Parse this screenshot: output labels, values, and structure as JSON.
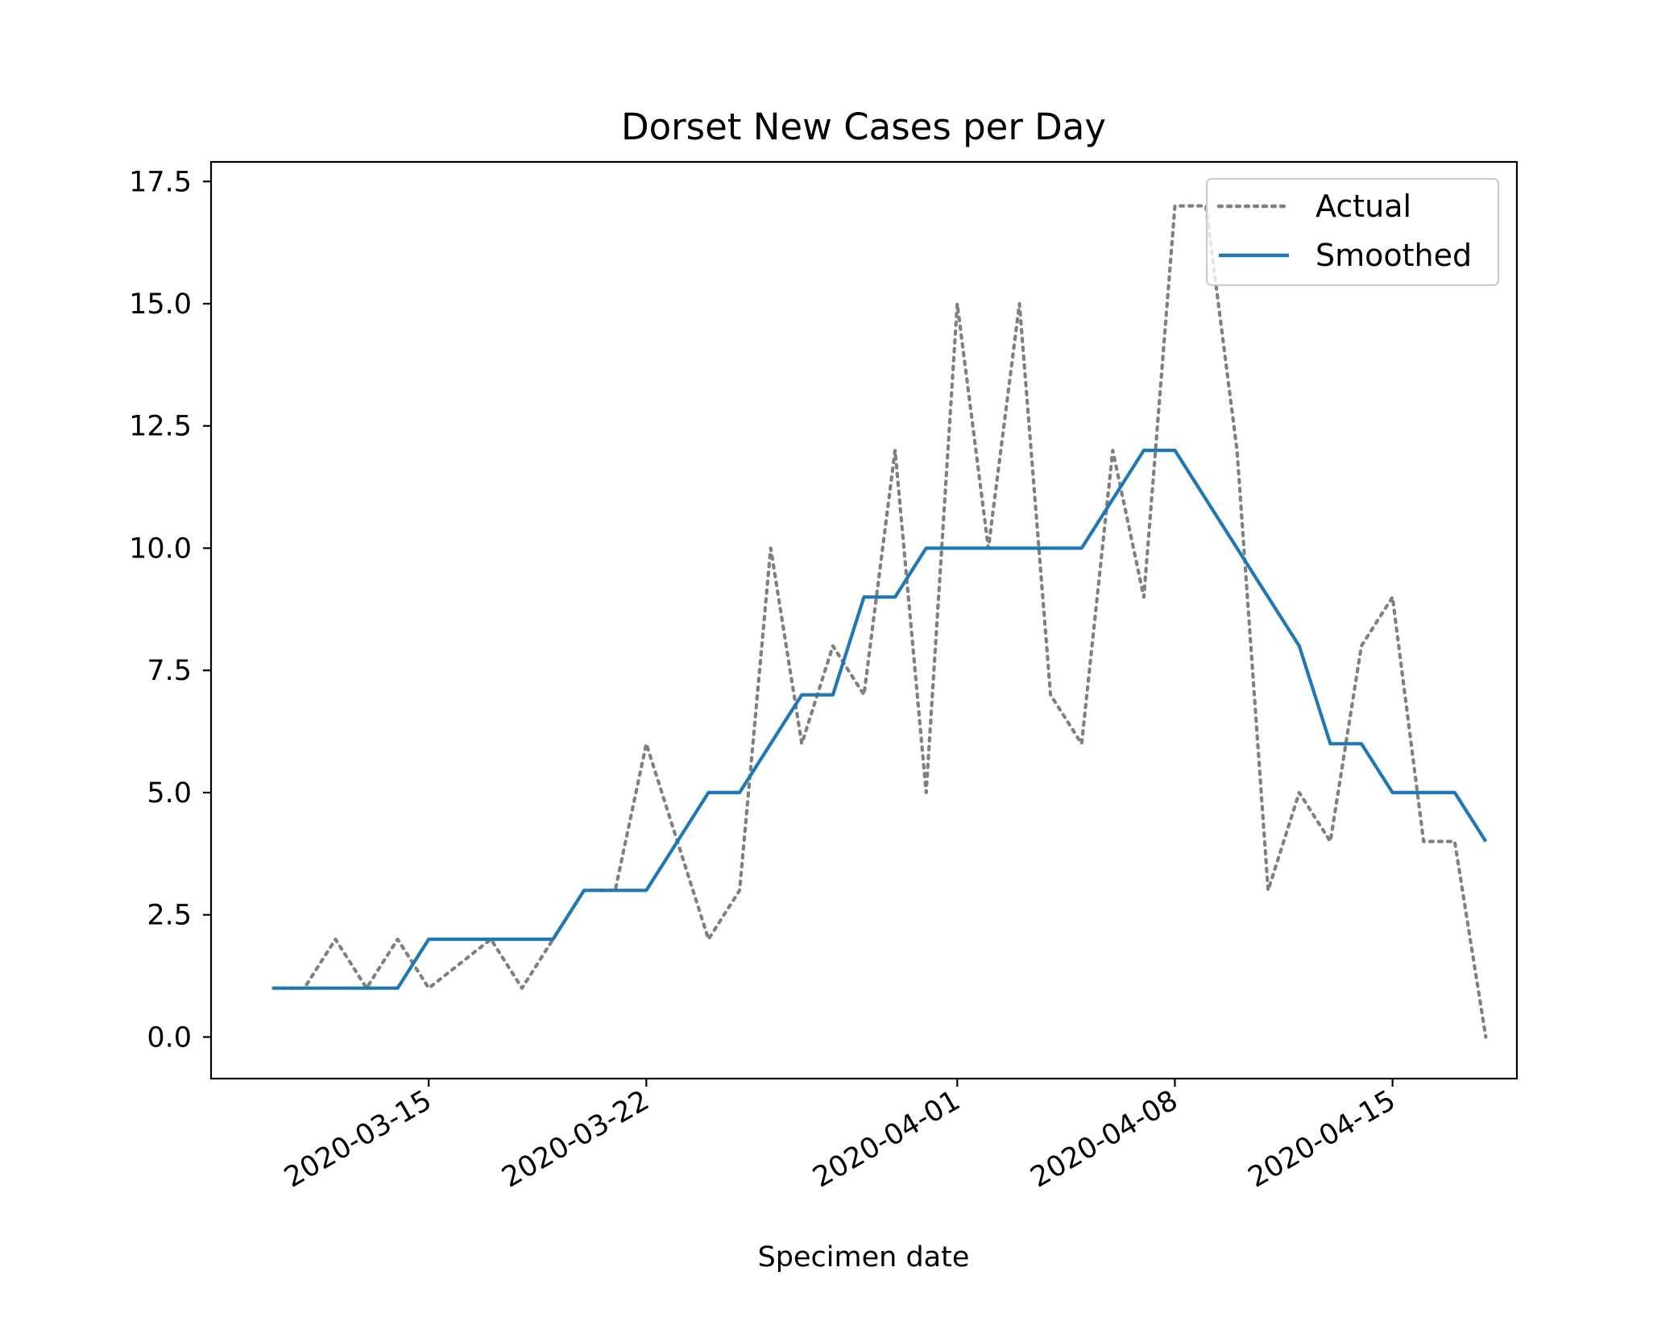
{
  "chart_data": {
    "type": "line",
    "title": "Dorset New Cases per Day",
    "xlabel": "Specimen date",
    "ylabel": "",
    "x_ticks": [
      "2020-03-15",
      "2020-03-22",
      "2020-04-01",
      "2020-04-08",
      "2020-04-15"
    ],
    "y_ticks": [
      "0.0",
      "2.5",
      "5.0",
      "7.5",
      "10.0",
      "12.5",
      "15.0",
      "17.5"
    ],
    "ylim": [
      -0.85,
      17.9
    ],
    "xlim": [
      "2020-03-08",
      "2020-04-19"
    ],
    "grid": false,
    "legend_position": "top-right",
    "dates": [
      "2020-03-10",
      "2020-03-11",
      "2020-03-12",
      "2020-03-13",
      "2020-03-14",
      "2020-03-15",
      "2020-03-16",
      "2020-03-17",
      "2020-03-18",
      "2020-03-19",
      "2020-03-20",
      "2020-03-21",
      "2020-03-22",
      "2020-03-23",
      "2020-03-24",
      "2020-03-25",
      "2020-03-26",
      "2020-03-27",
      "2020-03-28",
      "2020-03-29",
      "2020-03-30",
      "2020-03-31",
      "2020-04-01",
      "2020-04-02",
      "2020-04-03",
      "2020-04-04",
      "2020-04-05",
      "2020-04-06",
      "2020-04-07",
      "2020-04-08",
      "2020-04-09",
      "2020-04-10",
      "2020-04-11",
      "2020-04-12",
      "2020-04-13",
      "2020-04-14",
      "2020-04-15",
      "2020-04-16",
      "2020-04-17",
      "2020-04-18"
    ],
    "series": [
      {
        "name": "Actual",
        "color": "#808080",
        "style": "dotted",
        "values": [
          1,
          1,
          2,
          1,
          2,
          1,
          1.5,
          2,
          1,
          2,
          3,
          3,
          6,
          4,
          2,
          3,
          10,
          6,
          8,
          7,
          12,
          5,
          15,
          10,
          15,
          7,
          6,
          12,
          9,
          17,
          17,
          12,
          3,
          5,
          4,
          8,
          9,
          4,
          4,
          0
        ]
      },
      {
        "name": "Smoothed",
        "color": "#1f77b4",
        "style": "solid",
        "values": [
          1,
          1,
          1,
          1,
          1,
          2,
          2,
          2,
          2,
          2,
          3,
          3,
          3,
          4,
          5,
          5,
          6,
          7,
          7,
          9,
          9,
          10,
          10,
          10,
          10,
          10,
          10,
          11,
          12,
          12,
          11,
          10,
          9,
          8,
          6,
          6,
          5,
          5,
          5,
          4
        ]
      }
    ]
  }
}
